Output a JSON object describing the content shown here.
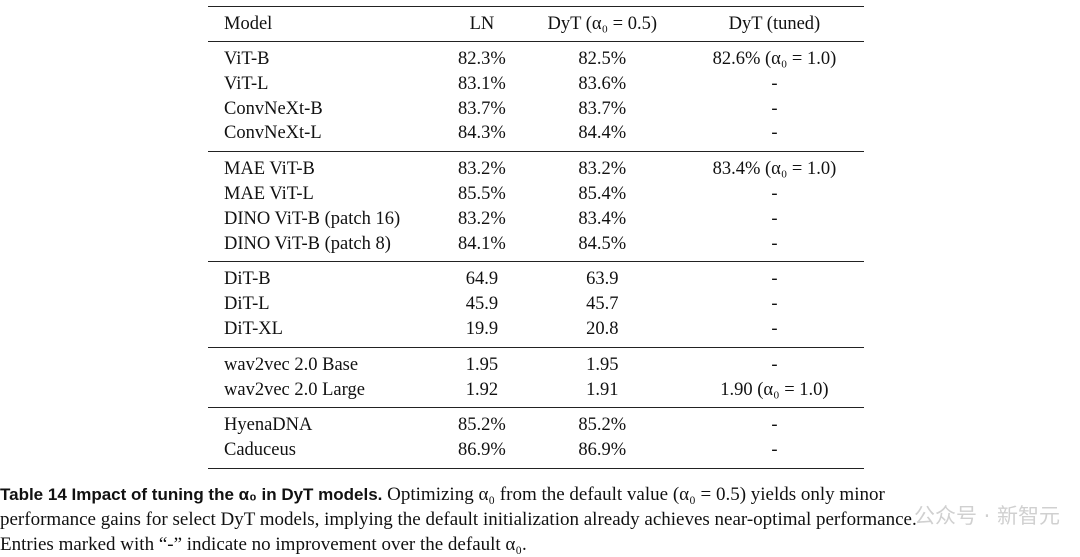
{
  "table": {
    "headers": [
      "Model",
      "LN",
      "DyT (α₀ = 0.5)",
      "DyT (tuned)"
    ],
    "groups": [
      [
        [
          "ViT-B",
          "82.3%",
          "82.5%",
          "82.6% (α₀ = 1.0)"
        ],
        [
          "ViT-L",
          "83.1%",
          "83.6%",
          "-"
        ],
        [
          "ConvNeXt-B",
          "83.7%",
          "83.7%",
          "-"
        ],
        [
          "ConvNeXt-L",
          "84.3%",
          "84.4%",
          "-"
        ]
      ],
      [
        [
          "MAE ViT-B",
          "83.2%",
          "83.2%",
          "83.4% (α₀ = 1.0)"
        ],
        [
          "MAE ViT-L",
          "85.5%",
          "85.4%",
          "-"
        ],
        [
          "DINO ViT-B (patch 16)",
          "83.2%",
          "83.4%",
          "-"
        ],
        [
          "DINO ViT-B (patch 8)",
          "84.1%",
          "84.5%",
          "-"
        ]
      ],
      [
        [
          "DiT-B",
          "64.9",
          "63.9",
          "-"
        ],
        [
          "DiT-L",
          "45.9",
          "45.7",
          "-"
        ],
        [
          "DiT-XL",
          "19.9",
          "20.8",
          "-"
        ]
      ],
      [
        [
          "wav2vec 2.0 Base",
          "1.95",
          "1.95",
          "-"
        ],
        [
          "wav2vec 2.0 Large",
          "1.92",
          "1.91",
          "1.90 (α₀ = 1.0)"
        ]
      ],
      [
        [
          "HyenaDNA",
          "85.2%",
          "85.2%",
          "-"
        ],
        [
          "Caduceus",
          "86.9%",
          "86.9%",
          "-"
        ]
      ]
    ]
  },
  "caption": {
    "label": "Table 14  Impact of tuning the α₀ in DyT models.",
    "lines": [
      "Optimizing α₀ from the default value (α₀ = 0.5) yields only minor",
      "performance gains for select DyT models, implying the default initialization already achieves near-optimal performance.",
      "Entries marked with “-” indicate no improvement over the default α₀."
    ]
  },
  "watermark": "公众号 · 新智元"
}
